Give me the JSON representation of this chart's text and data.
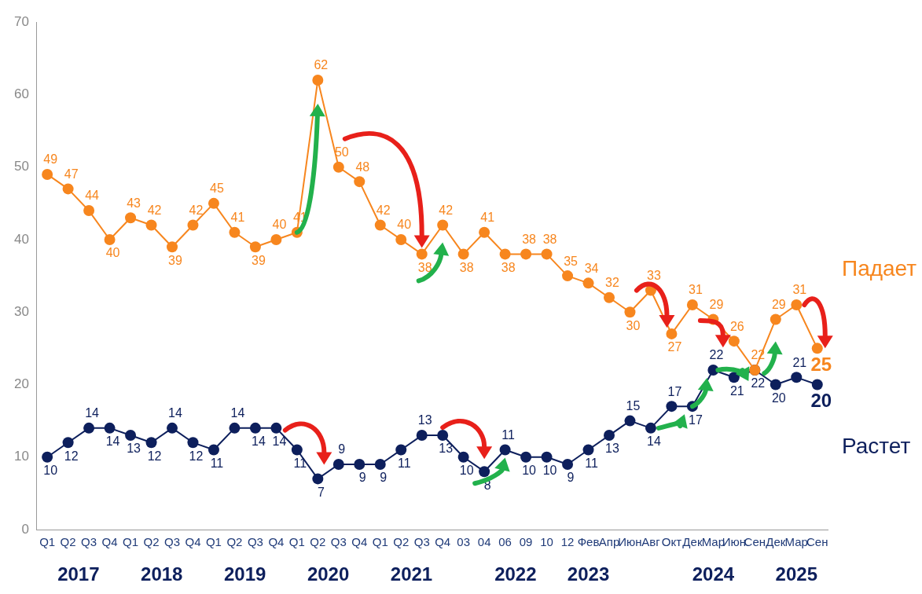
{
  "chart_data": {
    "type": "line",
    "categories": [
      "Q1",
      "Q2",
      "Q3",
      "Q4",
      "Q1",
      "Q2",
      "Q3",
      "Q4",
      "Q1",
      "Q2",
      "Q3",
      "Q4",
      "Q1",
      "Q2",
      "Q3",
      "Q4",
      "Q1",
      "Q2",
      "Q3",
      "Q4",
      "03",
      "04",
      "06",
      "09",
      "10",
      "12",
      "Фев",
      "Апр",
      "Июн",
      "Авг",
      "Окт",
      "Дек",
      "Мар",
      "Июн",
      "Сен",
      "Дек",
      "Мар",
      "Сен"
    ],
    "series": [
      {
        "name": "Падает",
        "color": "#f7861e",
        "values": [
          49,
          47,
          44,
          40,
          43,
          42,
          39,
          42,
          45,
          41,
          39,
          40,
          41,
          62,
          50,
          48,
          42,
          40,
          38,
          42,
          38,
          41,
          38,
          38,
          38,
          35,
          34,
          32,
          30,
          33,
          27,
          31,
          29,
          26,
          22,
          29,
          31,
          25
        ]
      },
      {
        "name": "Растет",
        "color": "#0d1f5c",
        "values": [
          10,
          12,
          14,
          14,
          13,
          12,
          14,
          12,
          11,
          14,
          14,
          14,
          11,
          7,
          9,
          9,
          9,
          11,
          13,
          13,
          10,
          8,
          11,
          10,
          10,
          9,
          11,
          13,
          15,
          14,
          17,
          17,
          22,
          21,
          22,
          20,
          21,
          20
        ]
      }
    ],
    "ylim": [
      0,
      70
    ],
    "yticks": [
      0,
      10,
      20,
      30,
      40,
      50,
      60,
      70
    ],
    "grid": false,
    "legend": false,
    "marker": "circle",
    "line_style": "solid",
    "data_labels": true,
    "annotations": [
      "2017",
      "2018",
      "2019",
      "2020",
      "2021",
      "2022",
      "2023",
      "2024",
      "2025"
    ]
  }
}
